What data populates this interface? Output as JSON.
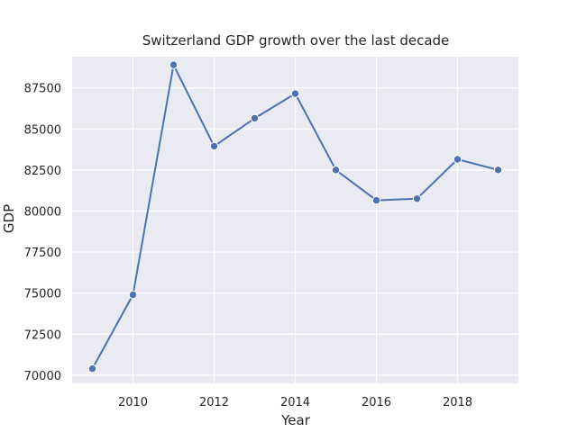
{
  "chart_data": {
    "type": "line",
    "title": "Switzerland GDP growth over the last decade",
    "xlabel": "Year",
    "ylabel": "GDP",
    "x": [
      2009,
      2010,
      2011,
      2012,
      2013,
      2014,
      2015,
      2016,
      2017,
      2018,
      2019
    ],
    "series": [
      {
        "values": [
          70400,
          74900,
          88900,
          83950,
          85650,
          87150,
          82500,
          80650,
          80750,
          83150,
          82500
        ]
      }
    ],
    "xlim": [
      2008.5,
      2019.5
    ],
    "ylim": [
      69500,
      89400
    ],
    "x_ticks": [
      2010,
      2012,
      2014,
      2016,
      2018
    ],
    "y_ticks": [
      70000,
      72500,
      75000,
      77500,
      80000,
      82500,
      85000,
      87500
    ],
    "grid": true,
    "colors": {
      "line": "#4c72b0",
      "background": "#eaeaf2"
    }
  }
}
